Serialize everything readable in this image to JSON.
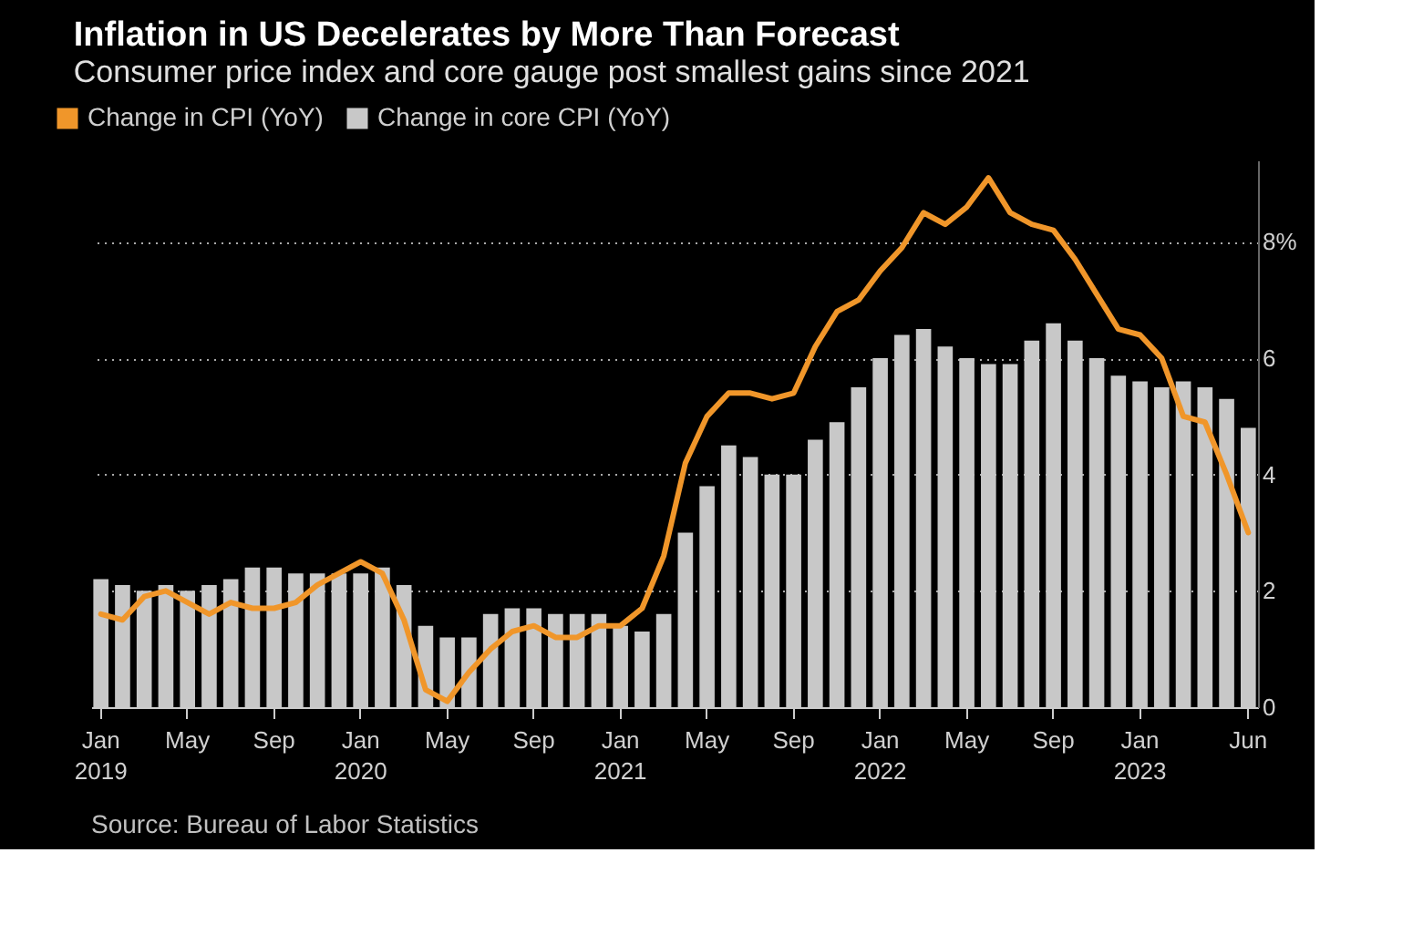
{
  "chart_data": {
    "type": "bar",
    "title": "Inflation in US Decelerates by More Than Forecast",
    "subtitle": "Consumer price index and core gauge post smallest gains since 2021",
    "annotations": [
      "Source: Bureau of Labor Statistics"
    ],
    "categories": [
      "Jan 2019",
      null,
      null,
      null,
      "May",
      null,
      null,
      null,
      "Sep",
      null,
      null,
      null,
      "Jan 2020",
      null,
      null,
      null,
      "May",
      null,
      null,
      null,
      "Sep",
      null,
      null,
      null,
      "Jan 2021",
      null,
      null,
      null,
      "May",
      null,
      null,
      null,
      "Sep",
      null,
      null,
      null,
      "Jan 2022",
      null,
      null,
      null,
      "May",
      null,
      null,
      null,
      "Sep",
      null,
      null,
      null,
      "Jan 2023",
      null,
      null,
      null,
      null,
      "Jun"
    ],
    "series": [
      {
        "name": "Change in CPI (YoY)",
        "type": "line",
        "color": "#f0962a",
        "values": [
          1.6,
          1.5,
          1.9,
          2.0,
          1.8,
          1.6,
          1.8,
          1.7,
          1.7,
          1.8,
          2.1,
          2.3,
          2.5,
          2.3,
          1.5,
          0.3,
          0.1,
          0.6,
          1.0,
          1.3,
          1.4,
          1.2,
          1.2,
          1.4,
          1.4,
          1.7,
          2.6,
          4.2,
          5.0,
          5.4,
          5.4,
          5.3,
          5.4,
          6.2,
          6.8,
          7.0,
          7.5,
          7.9,
          8.5,
          8.3,
          8.6,
          9.1,
          8.5,
          8.3,
          8.2,
          7.7,
          7.1,
          6.5,
          6.4,
          6.0,
          5.0,
          4.9,
          4.0,
          3.0
        ]
      },
      {
        "name": "Change in core CPI (YoY)",
        "color": "#c8c8c8",
        "values": [
          2.2,
          2.1,
          2.0,
          2.1,
          2.0,
          2.1,
          2.2,
          2.4,
          2.4,
          2.3,
          2.3,
          2.3,
          2.3,
          2.4,
          2.1,
          1.4,
          1.2,
          1.2,
          1.6,
          1.7,
          1.7,
          1.6,
          1.6,
          1.6,
          1.4,
          1.3,
          1.6,
          3.0,
          3.8,
          4.5,
          4.3,
          4.0,
          4.0,
          4.6,
          4.9,
          5.5,
          6.0,
          6.4,
          6.5,
          6.2,
          6.0,
          5.9,
          5.9,
          6.3,
          6.6,
          6.3,
          6.0,
          5.7,
          5.6,
          5.5,
          5.6,
          5.5,
          5.3,
          4.8
        ]
      }
    ],
    "ylim": [
      0,
      9.4
    ],
    "yticks": [
      0,
      2,
      4,
      6,
      {
        "value": 8,
        "label": "8%"
      }
    ],
    "grid": "y",
    "legend": "top left"
  }
}
